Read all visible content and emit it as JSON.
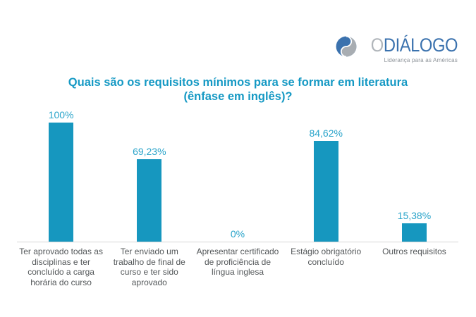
{
  "logo": {
    "prefix": "O",
    "name": "DIÁLOGO",
    "tagline": "Liderança para as Américas",
    "colors": {
      "blue": "#3B72AE",
      "prefix_gray": "#B0B5BA",
      "icon_gray": "#A8ADB2",
      "tagline_gray": "#8D9399"
    }
  },
  "title": {
    "line1": "Quais são os requisitos mínimos para se formar em literatura",
    "line2": "(ênfase em inglês)?",
    "color": "#1599C4"
  },
  "chart_data": {
    "type": "bar",
    "title": "Quais são os requisitos mínimos para se formar em literatura (ênfase em inglês)?",
    "categories": [
      "Ter aprovado todas as disciplinas e ter concluído a carga horária do curso",
      "Ter enviado um trabalho de final de curso e ter sido aprovado",
      "Apresentar certificado de proficiência de língua inglesa",
      "Estágio obrigatório concluído",
      "Outros requisitos"
    ],
    "values": [
      100,
      69.23,
      0,
      84.62,
      15.38
    ],
    "value_labels": [
      "100%",
      "69,23%",
      "0%",
      "84,62%",
      "15,38%"
    ],
    "xlabel": "",
    "ylabel": "",
    "ylim": [
      0,
      100
    ],
    "grid": false,
    "legend": false,
    "bar_color": "#1697BF",
    "value_label_color": "#2AA4CA",
    "category_label_color": "#54585A",
    "axis_line_color": "#D6D6D6"
  }
}
